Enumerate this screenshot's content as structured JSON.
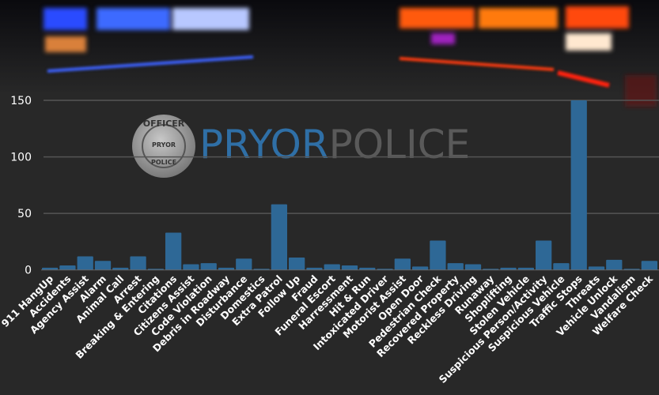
{
  "logo": {
    "text_primary": "PRYOR",
    "text_secondary": "POLICE",
    "badge_text": "OFFICER PRYOR POLICE"
  },
  "colors": {
    "bar": "#2e6896",
    "background": "#282828",
    "grid": "#555555",
    "logo_blue": "#2f6fa6",
    "logo_gray": "#5a5a5a"
  },
  "chart_data": {
    "type": "bar",
    "title": "",
    "xlabel": "",
    "ylabel": "",
    "ylim": [
      0,
      150
    ],
    "yticks": [
      0,
      50,
      100,
      150
    ],
    "grid": true,
    "categories": [
      "911 HangUp",
      "Accidents",
      "Agency Assist",
      "Alarm",
      "Animal Call",
      "Arrest",
      "Breaking & Entering",
      "Citations",
      "Citizens Assist",
      "Code Violation",
      "Debris in Roadway",
      "Disturbance",
      "Domestics",
      "Extra Patrol",
      "Follow Up",
      "Fraud",
      "Funeral Escort",
      "Harressment",
      "Hit & Run",
      "Intoxicated Driver",
      "Motorist Assist",
      "Open Door",
      "Pedestrian Check",
      "Recovered Property",
      "Reckless Driving",
      "Runaway",
      "Shoplifting",
      "Stolen Vehicle",
      "Suspicious Person/Activity",
      "Suspicious Vehicle",
      "Traffic Stops",
      "Threats",
      "Vehicle Unlock",
      "Vandalism",
      "Welfare Check"
    ],
    "values": [
      2,
      4,
      12,
      8,
      2,
      12,
      1,
      33,
      5,
      6,
      2,
      10,
      1,
      58,
      11,
      2,
      5,
      4,
      2,
      1,
      10,
      3,
      26,
      6,
      5,
      1,
      2,
      2,
      26,
      6,
      150,
      3,
      9,
      1,
      8
    ]
  }
}
